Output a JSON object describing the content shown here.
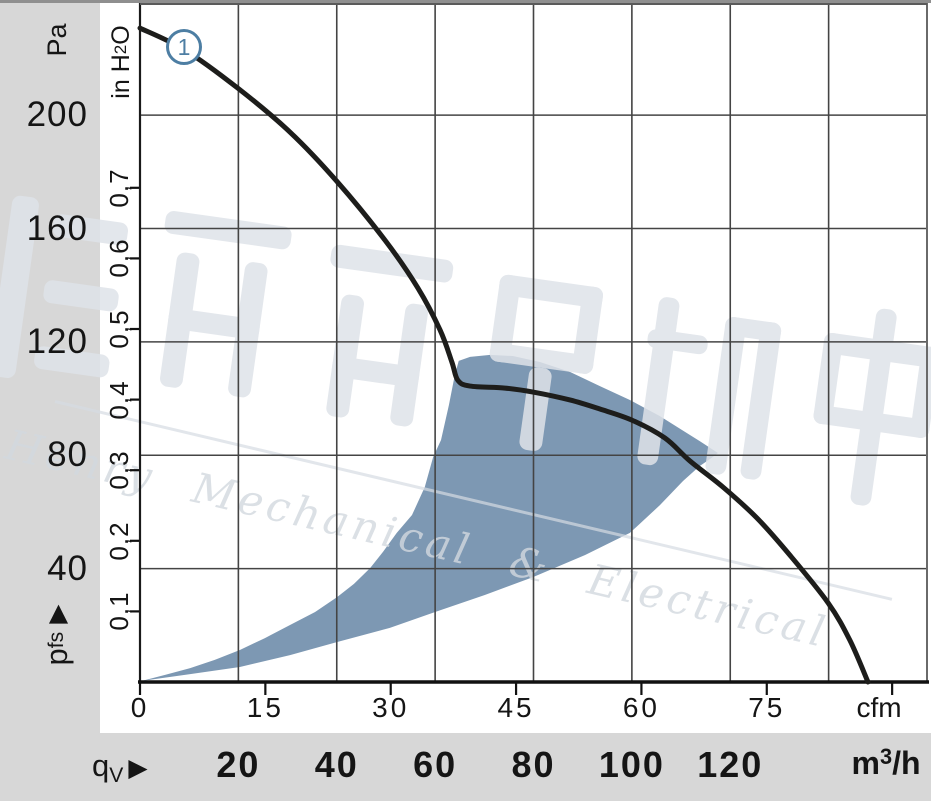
{
  "watermark": {
    "latin": "Henry Mechanical & Electrical",
    "cjk": "恒瑞宏达机电"
  },
  "badge": "1",
  "axes": {
    "pa_unit": "Pa",
    "inh2o_unit": {
      "pre": "in H",
      "sub": "2",
      "post": "O"
    },
    "cfm_unit": "cfm",
    "m3h_unit": {
      "pre": "m",
      "sup": "3",
      "post": "/h"
    },
    "flow_label": {
      "main": "q",
      "sub": "V",
      "arrow": "▶"
    },
    "pressure_label": {
      "main": "p",
      "sub": "fs",
      "arrow": "▶"
    },
    "inh2o_labels": [
      "0,7",
      "0,6",
      "0,5",
      "0,4",
      "0,3",
      "0,2",
      "0,1"
    ]
  },
  "chart_data": {
    "type": "line",
    "title": "",
    "x_axis": {
      "label": "qV",
      "primary_unit": "cfm",
      "secondary_unit": "m³/h",
      "cfm_labels": [
        0,
        15,
        30,
        45,
        60,
        75
      ],
      "cfm_tick_marks": [
        0,
        15,
        30,
        45,
        60,
        75,
        90
      ],
      "m3h_ticks": [
        20,
        40,
        60,
        80,
        100,
        120
      ],
      "m3h_range": [
        0,
        160
      ],
      "grid_step_m3h": 20
    },
    "y_axis": {
      "label": "pfs",
      "primary_unit": "Pa",
      "secondary_unit": "in H₂O",
      "pa_ticks": [
        200,
        160,
        120,
        80,
        40
      ],
      "inh2o_ticks": [
        0.7,
        0.6,
        0.5,
        0.4,
        0.3,
        0.2,
        0.1
      ],
      "pa_range": [
        0,
        240
      ],
      "grid_step_pa": 40
    },
    "grid": true,
    "legend": "none",
    "series": [
      {
        "name": "fan-curve-1",
        "badge": "1",
        "points_m3h_pa": [
          [
            0,
            230.7
          ],
          [
            9.1,
            223.0
          ],
          [
            19.9,
            209.5
          ],
          [
            30.5,
            194.0
          ],
          [
            40.0,
            176.7
          ],
          [
            49.8,
            155.9
          ],
          [
            56.5,
            139.0
          ],
          [
            61.0,
            124.2
          ],
          [
            63.4,
            112.9
          ],
          [
            64.6,
            106.5
          ],
          [
            67.1,
            104.4
          ],
          [
            74.2,
            103.7
          ],
          [
            79.9,
            102.3
          ],
          [
            87.4,
            99.5
          ],
          [
            93.5,
            96.3
          ],
          [
            100.0,
            92.4
          ],
          [
            106.7,
            86.1
          ],
          [
            111.8,
            78.0
          ],
          [
            118.5,
            68.8
          ],
          [
            125.4,
            57.9
          ],
          [
            132.1,
            44.8
          ],
          [
            139.9,
            27.9
          ],
          [
            144.3,
            14.8
          ],
          [
            148.0,
            0
          ]
        ]
      }
    ],
    "operating_region_m3h_pa": [
      [
        0.4,
        0.4
      ],
      [
        10.2,
        2.8
      ],
      [
        20.3,
        5.3
      ],
      [
        30.5,
        9.5
      ],
      [
        40.1,
        14.1
      ],
      [
        50.8,
        19.1
      ],
      [
        60.0,
        24.7
      ],
      [
        70.1,
        30.7
      ],
      [
        79.9,
        37.0
      ],
      [
        90.5,
        44.8
      ],
      [
        99.6,
        52.6
      ],
      [
        105.7,
        62.4
      ],
      [
        110.4,
        70.9
      ],
      [
        113.8,
        76.2
      ],
      [
        115.9,
        78.7
      ],
      [
        117.5,
        80.8
      ],
      [
        113.8,
        85.0
      ],
      [
        111.2,
        87.8
      ],
      [
        105.7,
        93.8
      ],
      [
        99.6,
        99.5
      ],
      [
        93.5,
        104.4
      ],
      [
        87.4,
        109.4
      ],
      [
        81.3,
        112.9
      ],
      [
        75.8,
        115.0
      ],
      [
        71.2,
        115.4
      ],
      [
        67.1,
        114.7
      ],
      [
        64.8,
        113.3
      ],
      [
        64.0,
        108.3
      ],
      [
        62.8,
        97.7
      ],
      [
        61.2,
        85.4
      ],
      [
        59.6,
        79.4
      ],
      [
        57.9,
        68.8
      ],
      [
        55.3,
        58.9
      ],
      [
        52.2,
        52.6
      ],
      [
        49.4,
        45.9
      ],
      [
        46.8,
        40.2
      ],
      [
        43.5,
        34.6
      ],
      [
        40.1,
        30.0
      ],
      [
        35.6,
        24.7
      ],
      [
        30.5,
        20.1
      ],
      [
        25.4,
        15.5
      ],
      [
        20.3,
        11.3
      ],
      [
        15.2,
        7.8
      ],
      [
        10.2,
        4.9
      ],
      [
        5.1,
        2.5
      ]
    ],
    "colors": {
      "curve": "#1d1d1b",
      "region": "#7d98b3",
      "badge": "#4d7ea3",
      "grid": "#444444"
    }
  }
}
